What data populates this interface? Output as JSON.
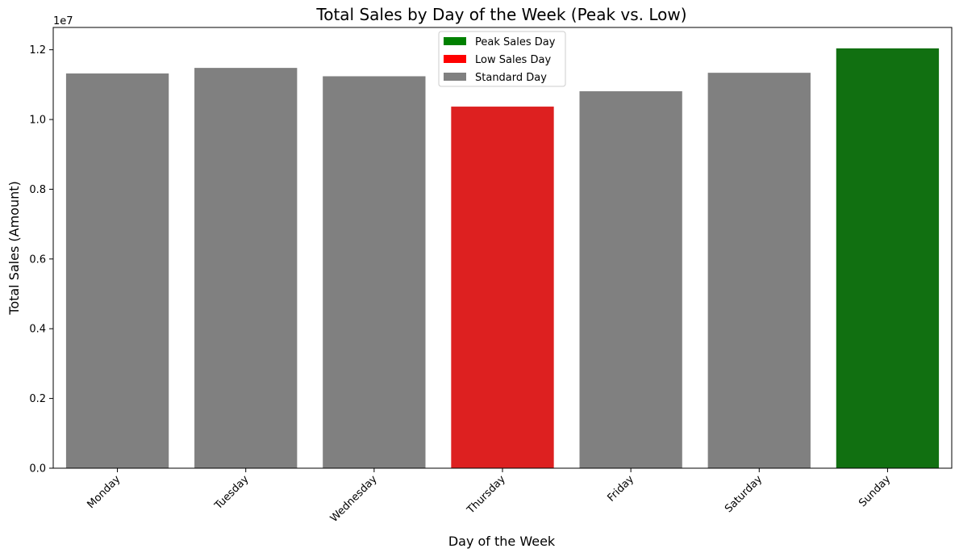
{
  "chart_data": {
    "type": "bar",
    "title": "Total Sales by Day of the Week (Peak vs. Low)",
    "xlabel": "Day of the Week",
    "ylabel": "Total Sales (Amount)",
    "offset_label": "1e7",
    "categories": [
      "Monday",
      "Tuesday",
      "Wednesday",
      "Thursday",
      "Friday",
      "Saturday",
      "Sunday"
    ],
    "values": [
      11320000,
      11480000,
      11240000,
      10370000,
      10810000,
      11340000,
      12040000
    ],
    "bar_kinds": [
      "standard",
      "standard",
      "standard",
      "low",
      "standard",
      "standard",
      "peak"
    ],
    "colors": {
      "peak": "#117011",
      "low": "#dd2020",
      "standard": "#808080",
      "legend_peak": "#008000",
      "legend_low": "#ff0000",
      "legend_standard": "#808080"
    },
    "ylim": [
      0,
      12640000
    ],
    "yticks": [
      0,
      2000000,
      4000000,
      6000000,
      8000000,
      10000000,
      12000000
    ],
    "ytick_labels": [
      "0.0",
      "0.2",
      "0.4",
      "0.6",
      "0.8",
      "1.0",
      "1.2"
    ],
    "grid": false,
    "legend_position": "top-center",
    "legend": [
      {
        "kind": "legend_peak",
        "label": "Peak Sales Day"
      },
      {
        "kind": "legend_low",
        "label": "Low Sales Day"
      },
      {
        "kind": "legend_standard",
        "label": "Standard Day"
      }
    ]
  }
}
